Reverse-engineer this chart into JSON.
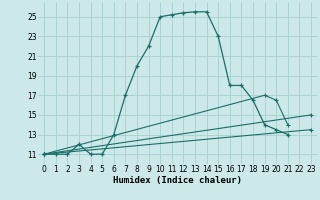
{
  "xlabel": "Humidex (Indice chaleur)",
  "bg_color": "#cce8e8",
  "line_color": "#1a6e6a",
  "xlim": [
    -0.5,
    23.5
  ],
  "ylim": [
    10.0,
    26.5
  ],
  "yticks": [
    11,
    13,
    15,
    17,
    19,
    21,
    23,
    25
  ],
  "xticks": [
    0,
    1,
    2,
    3,
    4,
    5,
    6,
    7,
    8,
    9,
    10,
    11,
    12,
    13,
    14,
    15,
    16,
    17,
    18,
    19,
    20,
    21,
    22,
    23
  ],
  "main_curve": {
    "x": [
      0,
      1,
      2,
      3,
      4,
      5,
      6,
      7,
      8,
      9,
      10,
      11,
      12,
      13,
      14,
      15,
      16,
      17,
      18,
      19,
      20,
      21
    ],
    "y": [
      11,
      11,
      11,
      12,
      11,
      11,
      13,
      17,
      20,
      22,
      25,
      25.2,
      25.4,
      25.5,
      25.5,
      23,
      18,
      18,
      16.5,
      14,
      13.5,
      13
    ]
  },
  "diag_lines": [
    {
      "x": [
        0,
        19,
        20,
        21
      ],
      "y": [
        11,
        17,
        16.5,
        14
      ]
    },
    {
      "x": [
        0,
        23
      ],
      "y": [
        11,
        15
      ]
    },
    {
      "x": [
        0,
        23
      ],
      "y": [
        11,
        13.5
      ]
    }
  ],
  "grid_color": "#aad4d0",
  "marker": "+"
}
